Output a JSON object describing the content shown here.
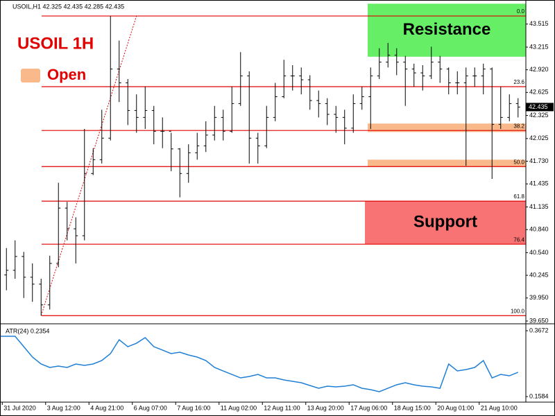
{
  "header": "USOIL,H1  42.325 42.435 42.285 42.435",
  "chart_data": [
    {
      "type": "ohlc",
      "title": "USOIL 1H",
      "legend": {
        "label": "Open",
        "color": "#f9b98a"
      },
      "bar_color": "#000000",
      "categories": [
        "31 Jul 2020",
        null,
        null,
        null,
        null,
        "3 Aug 12:00",
        null,
        null,
        null,
        null,
        "4 Aug 21:00",
        null,
        null,
        null,
        null,
        "6 Aug 07:00",
        null,
        null,
        null,
        null,
        "7 Aug 16:00",
        null,
        null,
        null,
        null,
        "11 Aug 02:00",
        null,
        null,
        null,
        null,
        "12 Aug 11:00",
        null,
        null,
        null,
        null,
        "13 Aug 20:00",
        null,
        null,
        null,
        null,
        "17 Aug 06:00",
        null,
        null,
        null,
        null,
        "18 Aug 15:00",
        null,
        null,
        null,
        null,
        "20 Aug 01:00",
        null,
        null,
        null,
        null,
        "21 Aug 10:00",
        null,
        null,
        null,
        null
      ],
      "open": [
        40.25,
        40.31,
        40.49,
        40.22,
        40.13,
        39.86,
        40.4,
        41.12,
        40.85,
        40.76,
        41.57,
        41.75,
        42.03,
        42.93,
        42.75,
        42.39,
        42.3,
        42.39,
        42.12,
        42.12,
        41.89,
        41.57,
        41.84,
        41.93,
        42.07,
        42.3,
        42.12,
        42.48,
        42.84,
        42.03,
        41.93,
        42.3,
        42.57,
        42.84,
        42.84,
        42.79,
        42.52,
        42.48,
        42.34,
        42.3,
        42.16,
        42.48,
        42.57,
        42.84,
        43.02,
        43.11,
        43.02,
        42.93,
        42.88,
        42.84,
        43.02,
        42.93,
        42.75,
        42.75,
        42.84,
        42.84,
        42.93,
        42.21,
        42.3,
        42.48
      ],
      "high": [
        40.6,
        40.7,
        40.55,
        40.4,
        40.2,
        40.5,
        41.45,
        41.2,
        41.0,
        42.15,
        41.9,
        42.4,
        43.62,
        43.3,
        42.8,
        42.6,
        42.7,
        42.45,
        42.3,
        42.1,
        41.9,
        41.95,
        42.1,
        42.25,
        42.45,
        42.4,
        42.7,
        43.15,
        42.9,
        42.1,
        42.45,
        42.75,
        43.05,
        42.98,
        42.95,
        42.85,
        42.65,
        42.55,
        42.45,
        42.4,
        42.6,
        42.7,
        42.95,
        43.2,
        43.27,
        43.2,
        43.1,
        43.0,
        42.98,
        43.22,
        43.1,
        42.95,
        42.9,
        42.95,
        42.95,
        43.0,
        42.95,
        42.7,
        42.6,
        42.55
      ],
      "low": [
        40.05,
        40.2,
        39.95,
        39.9,
        39.72,
        39.8,
        40.35,
        40.7,
        40.4,
        40.7,
        41.55,
        41.7,
        42.0,
        42.5,
        42.2,
        42.1,
        42.15,
        41.95,
        41.9,
        41.6,
        41.26,
        41.45,
        41.75,
        41.85,
        42.0,
        42.0,
        42.1,
        42.45,
        41.7,
        41.7,
        41.9,
        42.25,
        42.55,
        42.65,
        42.6,
        42.4,
        42.3,
        42.2,
        42.1,
        41.95,
        42.1,
        42.4,
        42.15,
        42.8,
        42.95,
        42.85,
        42.45,
        42.7,
        42.65,
        42.8,
        42.75,
        42.6,
        42.6,
        41.67,
        42.7,
        42.6,
        41.5,
        42.15,
        42.25,
        42.3
      ],
      "close": [
        40.31,
        40.49,
        40.22,
        40.13,
        39.86,
        40.4,
        41.12,
        40.85,
        40.76,
        41.57,
        41.75,
        42.03,
        42.93,
        42.75,
        42.39,
        42.3,
        42.39,
        42.12,
        42.12,
        41.89,
        41.57,
        41.84,
        41.93,
        42.07,
        42.3,
        42.12,
        42.48,
        42.84,
        42.03,
        41.93,
        42.3,
        42.57,
        42.84,
        42.84,
        42.79,
        42.52,
        42.48,
        42.34,
        42.3,
        42.16,
        42.48,
        42.57,
        42.84,
        43.02,
        43.11,
        43.02,
        42.93,
        42.88,
        42.84,
        43.02,
        42.93,
        42.75,
        42.75,
        42.84,
        42.84,
        42.93,
        42.21,
        42.3,
        42.48,
        42.435
      ],
      "ylim": [
        39.623,
        43.72
      ],
      "yticks": [
        43.515,
        43.215,
        {
          "value": 42.92,
          "label": "42.920"
        },
        42.625,
        42.325,
        42.025,
        {
          "value": 41.73,
          "label": "41.730"
        },
        41.435,
        41.135,
        {
          "value": 40.84,
          "label": "40.840"
        },
        {
          "value": 40.54,
          "label": "40.540"
        },
        40.245,
        {
          "value": 39.95,
          "label": "39.950"
        },
        {
          "value": 39.65,
          "label": "39.650"
        }
      ],
      "price_tag": 42.435,
      "fib_color": "#e00000",
      "fib_levels": [
        {
          "value": 43.62,
          "label": "0.0"
        },
        {
          "value": 42.7,
          "label": "23.6"
        },
        {
          "value": 42.13,
          "label": "38.2"
        },
        {
          "value": 41.66,
          "label": "50.0"
        },
        {
          "value": 41.21,
          "label": "61.8"
        },
        {
          "value": 40.65,
          "label": "76.4"
        },
        {
          "value": 39.72,
          "label": "100.0"
        }
      ],
      "zones": [
        {
          "name": "Resistance",
          "color": "#66ee66",
          "top": 43.78,
          "bottom": 43.09
        },
        {
          "name": "Support",
          "color": "#f87474",
          "top": 41.21,
          "bottom": 40.65
        },
        {
          "color": "#f9b98a",
          "top": 42.22,
          "bottom": 42.11
        },
        {
          "color": "#f9b98a",
          "top": 41.75,
          "bottom": 41.66
        }
      ]
    },
    {
      "type": "line",
      "title": "ATR(24) 0.2354",
      "color": "#1e7fd6",
      "values": [
        0.3496,
        0.3496,
        0.3166,
        0.2837,
        0.2617,
        0.2507,
        0.2551,
        0.2507,
        0.2617,
        0.2573,
        0.2617,
        0.2727,
        0.2947,
        0.3386,
        0.3166,
        0.3276,
        0.3452,
        0.3166,
        0.3057,
        0.2947,
        0.2991,
        0.2903,
        0.2837,
        0.2727,
        0.2507,
        0.2397,
        0.2287,
        0.2177,
        0.2221,
        0.2287,
        0.2177,
        0.2177,
        0.2111,
        0.2067,
        0.2023,
        0.1936,
        0.1848,
        0.1914,
        0.1892,
        0.1914,
        0.1958,
        0.1848,
        0.1804,
        0.1738,
        0.1848,
        0.1958,
        0.2023,
        0.1958,
        0.1914,
        0.1892,
        0.1848,
        0.2617,
        0.2397,
        0.2441,
        0.2507,
        0.2727,
        0.2177,
        0.2287,
        0.2243,
        0.2354
      ],
      "ylim": [
        0.1408,
        0.387
      ],
      "yticks": [
        0.3672,
        0.1584
      ]
    }
  ]
}
